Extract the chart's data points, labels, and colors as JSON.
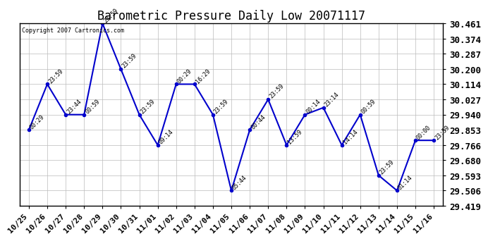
{
  "title": "Barometric Pressure Daily Low 20071117",
  "copyright": "Copyright 2007 Cartronics.com",
  "x_labels": [
    "10/25",
    "10/26",
    "10/27",
    "10/28",
    "10/29",
    "10/30",
    "10/31",
    "11/01",
    "11/02",
    "11/03",
    "11/04",
    "11/05",
    "11/06",
    "11/07",
    "11/08",
    "11/09",
    "11/10",
    "11/11",
    "11/12",
    "11/13",
    "11/14",
    "11/15",
    "11/16"
  ],
  "y_values": [
    29.853,
    30.114,
    29.94,
    29.94,
    30.461,
    30.2,
    29.94,
    29.766,
    30.114,
    30.114,
    29.94,
    29.506,
    29.853,
    30.027,
    29.766,
    29.94,
    29.98,
    29.766,
    29.94,
    29.593,
    29.506,
    29.793,
    29.793
  ],
  "point_labels": [
    "00:29",
    "23:59",
    "23:44",
    "00:59",
    "23:59",
    "23:59",
    "23:59",
    "09:14",
    "00:29",
    "16:29",
    "23:59",
    "05:44",
    "00:44",
    "23:59",
    "13:59",
    "00:14",
    "23:14",
    "14:14",
    "00:59",
    "23:59",
    "01:14",
    "00:00",
    "23:59"
  ],
  "line_color": "#0000cc",
  "marker_color": "#0000cc",
  "background_color": "#ffffff",
  "grid_color": "#bbbbbb",
  "ylim_min": 29.419,
  "ylim_max": 30.461,
  "ytick_values": [
    29.419,
    29.506,
    29.593,
    29.68,
    29.766,
    29.853,
    29.94,
    30.027,
    30.114,
    30.2,
    30.287,
    30.374,
    30.461
  ],
  "title_fontsize": 12,
  "label_fontsize": 6.0,
  "tick_fontsize": 8.0,
  "ytick_fontsize": 9.0,
  "copyright_fontsize": 6.0
}
